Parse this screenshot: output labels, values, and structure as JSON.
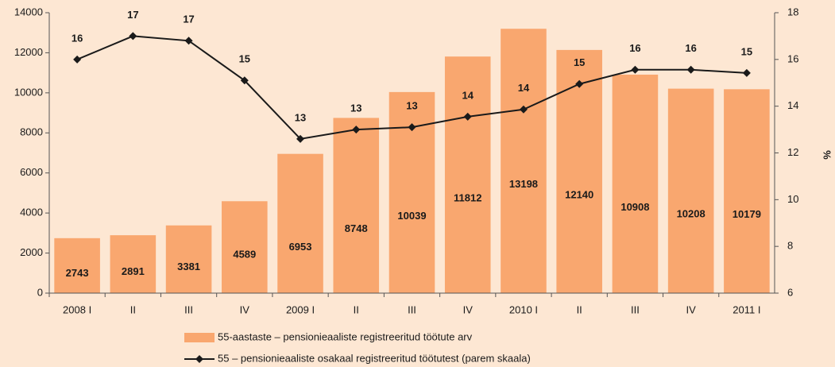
{
  "chart_data": {
    "type": "bar-line",
    "categories": [
      "2008 I",
      "II",
      "III",
      "IV",
      "2009 I",
      "II",
      "III",
      "IV",
      "2010 I",
      "II",
      "III",
      "IV",
      "2011 I"
    ],
    "series": [
      {
        "name": "55-aastaste – pensionieaaliste registreeritud töötute arv",
        "type": "bar",
        "color": "#f9a76f",
        "values": [
          2743,
          2891,
          3381,
          4589,
          6953,
          8748,
          10039,
          11812,
          13198,
          12140,
          10908,
          10208,
          10179
        ]
      },
      {
        "name": "55 – pensionieaaliste osakaal registreeritud töötutest (parem skaala)",
        "type": "line",
        "axis": "y2",
        "color": "#1a1a1a",
        "values": [
          16.0,
          17.0,
          16.8,
          15.1,
          12.6,
          13.0,
          13.1,
          13.55,
          13.86,
          14.95,
          15.56,
          15.56,
          15.42
        ],
        "value_labels": [
          "16",
          "17",
          "17",
          "15",
          "13",
          "13",
          "13",
          "14",
          "14",
          "15",
          "16",
          "16",
          "15"
        ]
      }
    ],
    "ylim": [
      0,
      14000
    ],
    "yticks": [
      0,
      2000,
      4000,
      6000,
      8000,
      10000,
      12000,
      14000
    ],
    "y2lim": [
      6,
      18
    ],
    "y2ticks": [
      6,
      8,
      10,
      12,
      14,
      16,
      18
    ],
    "y2label": "%",
    "grid": false
  }
}
